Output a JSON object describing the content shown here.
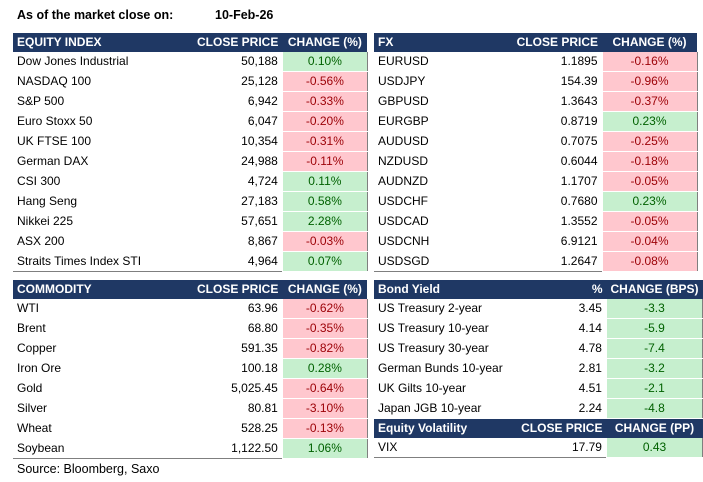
{
  "header": {
    "label": "As of the market close on:",
    "date": "10-Feb-26"
  },
  "equity": {
    "headers": [
      "EQUITY INDEX",
      "CLOSE PRICE",
      "CHANGE (%)"
    ],
    "rows": [
      {
        "name": "Dow Jones Industrial",
        "price": "50,188",
        "change": "0.10%",
        "dir": "pos"
      },
      {
        "name": "NASDAQ 100",
        "price": "25,128",
        "change": "-0.56%",
        "dir": "neg"
      },
      {
        "name": "S&P 500",
        "price": "6,942",
        "change": "-0.33%",
        "dir": "neg"
      },
      {
        "name": "Euro Stoxx 50",
        "price": "6,047",
        "change": "-0.20%",
        "dir": "neg"
      },
      {
        "name": "UK FTSE 100",
        "price": "10,354",
        "change": "-0.31%",
        "dir": "neg"
      },
      {
        "name": "German DAX",
        "price": "24,988",
        "change": "-0.11%",
        "dir": "neg"
      },
      {
        "name": "CSI 300",
        "price": "4,724",
        "change": "0.11%",
        "dir": "pos"
      },
      {
        "name": "Hang Seng",
        "price": "27,183",
        "change": "0.58%",
        "dir": "pos"
      },
      {
        "name": "Nikkei 225",
        "price": "57,651",
        "change": "2.28%",
        "dir": "pos"
      },
      {
        "name": "ASX 200",
        "price": "8,867",
        "change": "-0.03%",
        "dir": "neg"
      },
      {
        "name": "Straits Times Index STI",
        "price": "4,964",
        "change": "0.07%",
        "dir": "pos"
      }
    ]
  },
  "fx": {
    "headers": [
      "FX",
      "CLOSE PRICE",
      "CHANGE (%)"
    ],
    "rows": [
      {
        "name": "EURUSD",
        "price": "1.1895",
        "change": "-0.16%",
        "dir": "neg"
      },
      {
        "name": "USDJPY",
        "price": "154.39",
        "change": "-0.96%",
        "dir": "neg"
      },
      {
        "name": "GBPUSD",
        "price": "1.3643",
        "change": "-0.37%",
        "dir": "neg"
      },
      {
        "name": "EURGBP",
        "price": "0.8719",
        "change": "0.23%",
        "dir": "pos"
      },
      {
        "name": "AUDUSD",
        "price": "0.7075",
        "change": "-0.25%",
        "dir": "neg"
      },
      {
        "name": "NZDUSD",
        "price": "0.6044",
        "change": "-0.18%",
        "dir": "neg"
      },
      {
        "name": "AUDNZD",
        "price": "1.1707",
        "change": "-0.05%",
        "dir": "neg"
      },
      {
        "name": "USDCHF",
        "price": "0.7680",
        "change": "0.23%",
        "dir": "pos"
      },
      {
        "name": "USDCAD",
        "price": "1.3552",
        "change": "-0.05%",
        "dir": "neg"
      },
      {
        "name": "USDCNH",
        "price": "6.9121",
        "change": "-0.04%",
        "dir": "neg"
      },
      {
        "name": "USDSGD",
        "price": "1.2647",
        "change": "-0.08%",
        "dir": "neg"
      }
    ]
  },
  "commodity": {
    "headers": [
      "COMMODITY",
      "CLOSE PRICE",
      "CHANGE (%)"
    ],
    "rows": [
      {
        "name": "WTI",
        "price": "63.96",
        "change": "-0.62%",
        "dir": "neg"
      },
      {
        "name": "Brent",
        "price": "68.80",
        "change": "-0.35%",
        "dir": "neg"
      },
      {
        "name": "Copper",
        "price": "591.35",
        "change": "-0.82%",
        "dir": "neg"
      },
      {
        "name": "Iron Ore",
        "price": "100.18",
        "change": "0.28%",
        "dir": "pos"
      },
      {
        "name": "Gold",
        "price": "5,025.45",
        "change": "-0.64%",
        "dir": "neg"
      },
      {
        "name": "Silver",
        "price": "80.81",
        "change": "-3.10%",
        "dir": "neg"
      },
      {
        "name": "Wheat",
        "price": "528.25",
        "change": "-0.13%",
        "dir": "neg"
      },
      {
        "name": "Soybean",
        "price": "1,122.50",
        "change": "1.06%",
        "dir": "pos"
      }
    ]
  },
  "bond": {
    "headers": [
      "Bond Yield",
      "%",
      "CHANGE (BPS)"
    ],
    "rows": [
      {
        "name": "US Treasury 2-year",
        "price": "3.45",
        "change": "-3.3",
        "dir": "pos"
      },
      {
        "name": "US Treasury 10-year",
        "price": "4.14",
        "change": "-5.9",
        "dir": "pos"
      },
      {
        "name": "US Treasury 30-year",
        "price": "4.78",
        "change": "-7.4",
        "dir": "pos"
      },
      {
        "name": "German Bunds 10-year",
        "price": "2.81",
        "change": "-3.2",
        "dir": "pos"
      },
      {
        "name": "UK Gilts 10-year",
        "price": "4.51",
        "change": "-2.1",
        "dir": "pos"
      },
      {
        "name": "Japan JGB 10-year",
        "price": "2.24",
        "change": "-4.8",
        "dir": "pos"
      }
    ]
  },
  "volatility": {
    "headers": [
      "Equity Volatility",
      "CLOSE PRICE",
      "CHANGE (PP)"
    ],
    "rows": [
      {
        "name": "VIX",
        "price": "17.79",
        "change": "0.43",
        "dir": "pos"
      }
    ]
  },
  "footer": {
    "source": "Source: Bloomberg, Saxo"
  },
  "colors": {
    "header_bg": "#1f3864",
    "positive_bg": "#c6efce",
    "positive_text": "#006100",
    "negative_bg": "#ffc7ce",
    "negative_text": "#9c0006"
  }
}
